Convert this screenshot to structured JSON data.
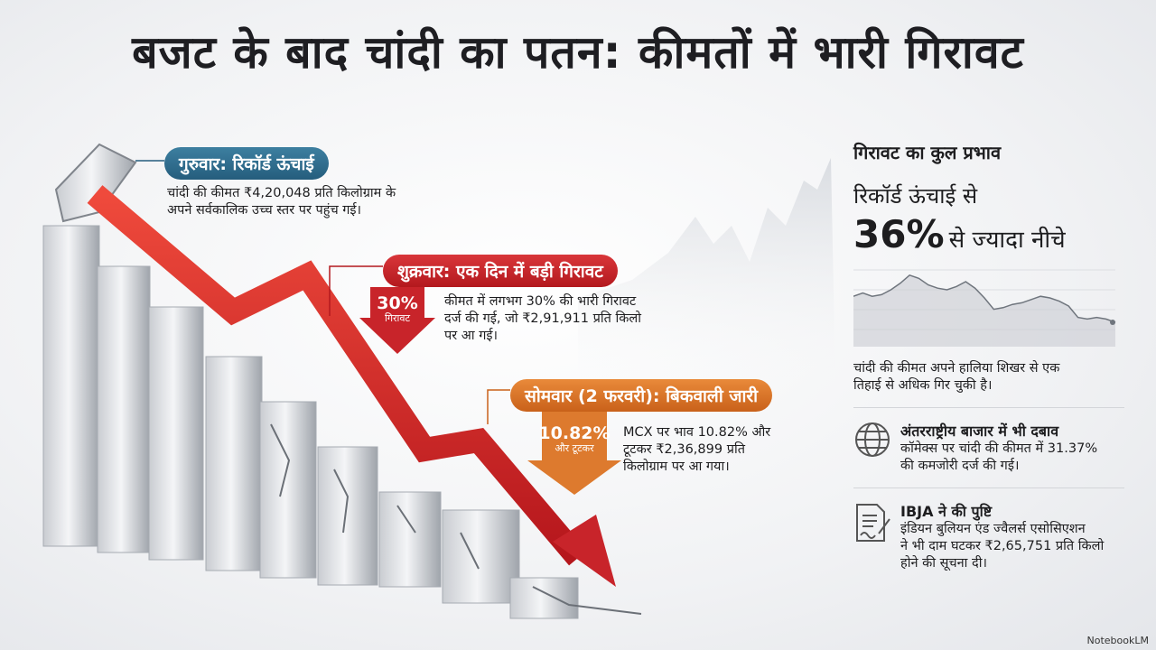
{
  "title": "बजट के बाद चांदी का पतन: कीमतों में भारी गिरावट",
  "callouts": {
    "thursday": {
      "label": "गुरुवार: रिकॉर्ड ऊंचाई",
      "text1": "चांदी की कीमत ₹4,20,048 प्रति किलोग्राम के",
      "text2": "अपने सर्वकालिक उच्च स्तर पर पहुंच गई।"
    },
    "friday": {
      "label": "शुक्रवार: एक दिन में बड़ी गिरावट",
      "badge_value": "30%",
      "badge_label": "गिरावट",
      "text1": "कीमत में लगभग 30% की भारी गिरावट",
      "text2": "दर्ज की गई, जो ₹2,91,911 प्रति किलो",
      "text3": "पर आ गई।"
    },
    "monday": {
      "label": "सोमवार (2 फरवरी): बिकवाली जारी",
      "badge_value": "10.82%",
      "badge_label": "और टूटकर",
      "text1": "MCX पर भाव 10.82% और",
      "text2": "टूटकर ₹2,36,899 प्रति",
      "text3": "किलोग्राम पर आ गया।"
    }
  },
  "panel": {
    "heading": "गिरावट का कुल प्रभाव",
    "sub": "रिकॉर्ड ऊंचाई से",
    "pct": "36%",
    "pct_rest": "से ज्यादा नीचे",
    "chart_note1": "चांदी की कीमत अपने हालिया शिखर से एक",
    "chart_note2": "तिहाई से अधिक गिर चुकी है।",
    "intl": {
      "icon": "globe-icon",
      "heading": "अंतरराष्ट्रीय बाजार में भी दबाव",
      "text1": "कॉमेक्स पर चांदी की कीमत में 31.37%",
      "text2": "की कमजोरी दर्ज की गई।"
    },
    "ibja": {
      "icon": "document-signature-icon",
      "heading": "IBJA ने की पुष्टि",
      "text1": "इंडियन बुलियन एंड ज्वैलर्स एसोसिएशन",
      "text2": "ने भी दाम घटकर ₹2,65,751 प्रति किलो",
      "text3": "होने की सूचना दी।"
    }
  },
  "sparkline": [
    62,
    66,
    62,
    64,
    70,
    78,
    88,
    84,
    76,
    72,
    70,
    74,
    80,
    72,
    60,
    46,
    48,
    52,
    54,
    58,
    62,
    60,
    56,
    50,
    36,
    34,
    36,
    34,
    30
  ],
  "colors": {
    "blue": "#2f6f90",
    "red": "#c8242a",
    "orange": "#d97127"
  },
  "branding": "NotebookLM"
}
